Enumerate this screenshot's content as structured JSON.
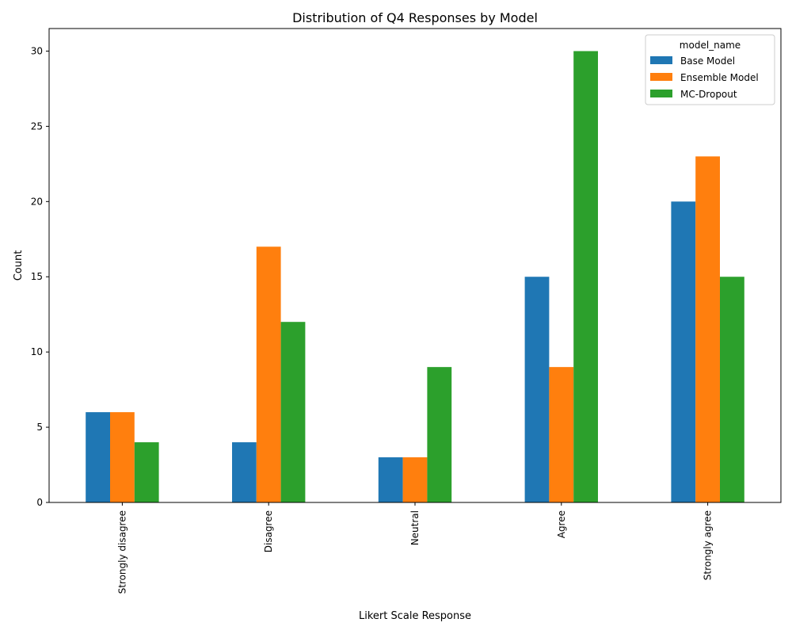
{
  "chart_data": {
    "type": "bar",
    "title": "Distribution of Q4 Responses by Model",
    "xlabel": "Likert Scale Response",
    "ylabel": "Count",
    "categories": [
      "Strongly disagree",
      "Disagree",
      "Neutral",
      "Agree",
      "Strongly agree"
    ],
    "series": [
      {
        "name": "Base Model",
        "color": "#1f77b4",
        "values": [
          6,
          4,
          3,
          15,
          20
        ]
      },
      {
        "name": "Ensemble Model",
        "color": "#ff7f0e",
        "values": [
          6,
          17,
          3,
          9,
          23
        ]
      },
      {
        "name": "MC-Dropout",
        "color": "#2ca02c",
        "values": [
          4,
          12,
          9,
          30,
          15
        ]
      }
    ],
    "ylim": [
      0,
      31.5
    ],
    "yticks": [
      0,
      5,
      10,
      15,
      20,
      25,
      30
    ],
    "legend": {
      "title": "model_name",
      "position": "top-right"
    },
    "grid": false
  }
}
